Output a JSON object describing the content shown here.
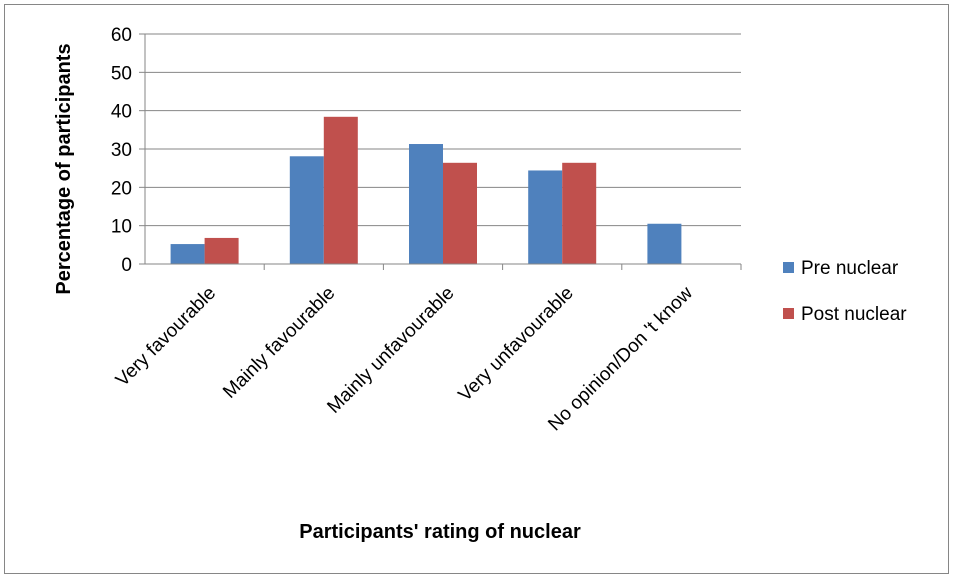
{
  "chart_data": {
    "type": "bar",
    "categories": [
      "Very favourable",
      "Mainly favourable",
      "Mainly unfavourable",
      "Very unfavourable",
      "No opinion/Don 't know"
    ],
    "series": [
      {
        "name": "Pre nuclear",
        "values": [
          5.2,
          28.1,
          31.3,
          24.4,
          10.5
        ],
        "color": "#4F81BD"
      },
      {
        "name": "Post nuclear",
        "values": [
          6.8,
          38.4,
          26.4,
          26.4,
          0
        ],
        "color": "#C0504D"
      }
    ],
    "title": "",
    "xlabel": "Participants' rating of nuclear",
    "ylabel": "Percentage of participants",
    "ylim": [
      0,
      60
    ],
    "yticks": [
      0,
      10,
      20,
      30,
      40,
      50,
      60
    ],
    "grid": true,
    "legend_position": "right"
  }
}
